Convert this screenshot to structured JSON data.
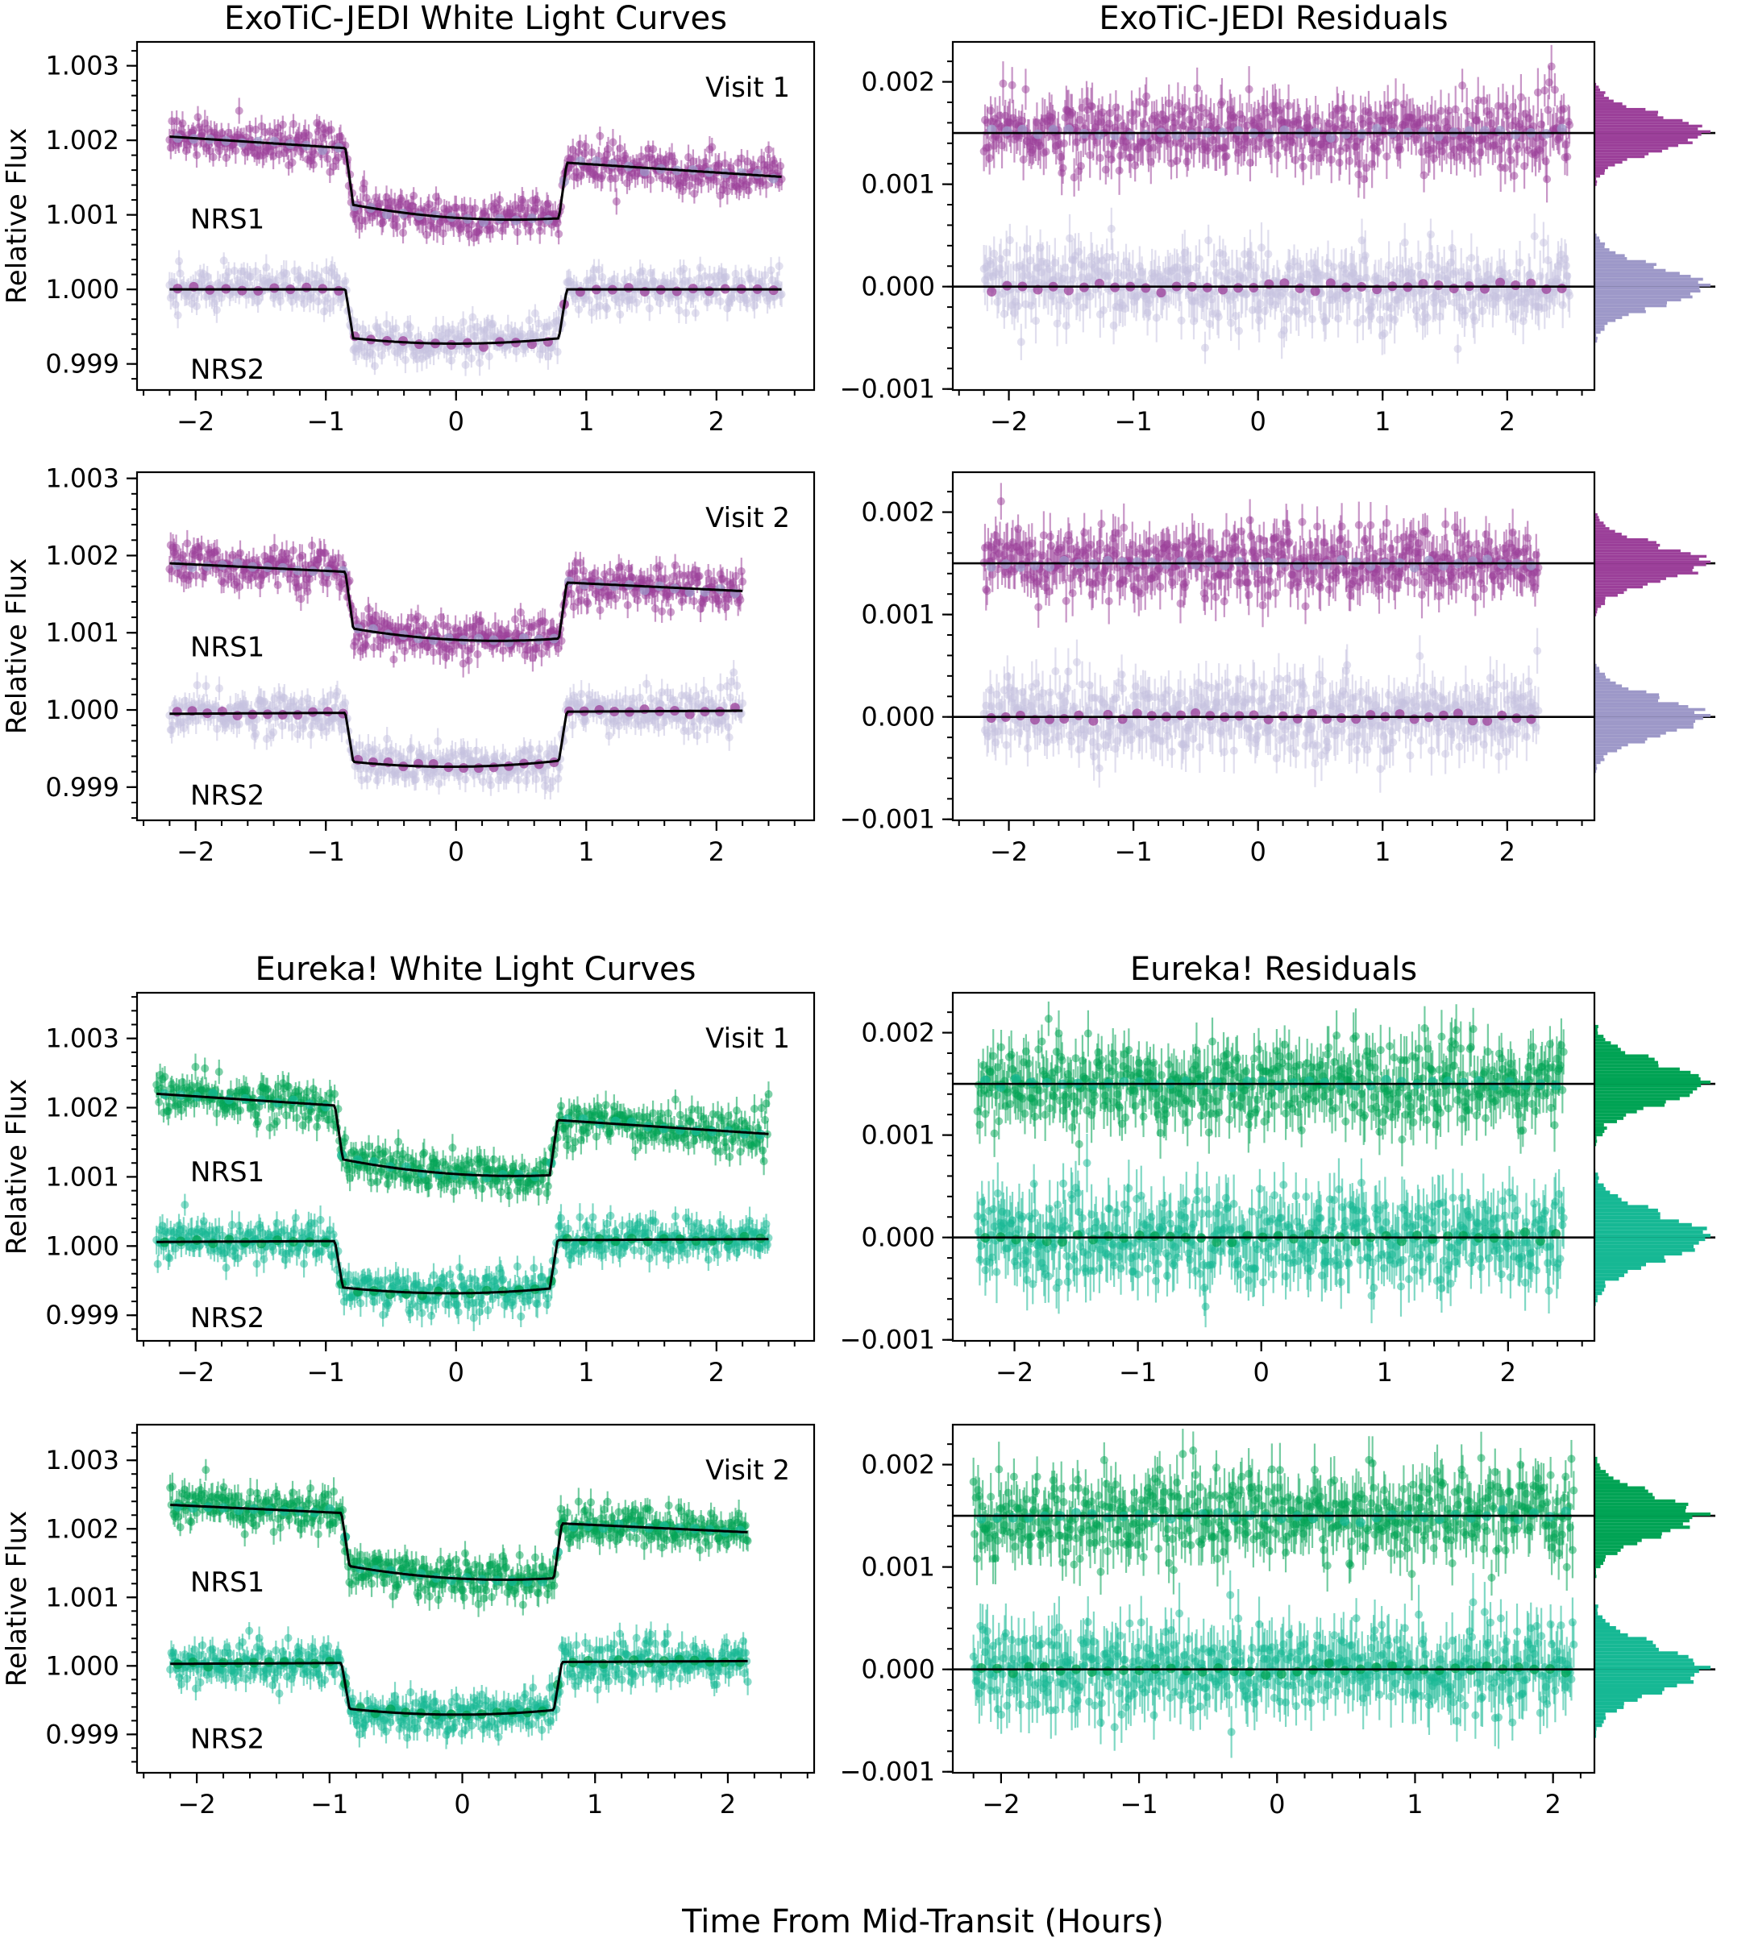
{
  "figure": {
    "xlabel": "Time From Mid-Transit (Hours)",
    "ylabel": "Relative Flux",
    "colors": {
      "jedi_nrs1": "#9b3f99",
      "jedi_nrs2": "#9d98c8",
      "jedi_nrs2_light": "#c6c2e0",
      "eureka_nrs1": "#00a354",
      "eureka_nrs2": "#16b894",
      "model": "#000000"
    }
  },
  "chart_data": [
    {
      "type": "scatter",
      "panel": "lc",
      "palette": "jedi",
      "visit_idx": 0,
      "title": "ExoTiC-JEDI White Light Curves",
      "annotation": "Visit 1",
      "ylabel": "Relative Flux",
      "xlim": [
        -2.45,
        2.75
      ],
      "ylim": [
        0.99865,
        1.00332
      ],
      "xticks": [
        -2,
        -1,
        0,
        1,
        2
      ],
      "xtick_labels": [
        "−2",
        "−1",
        "0",
        "1",
        "2"
      ],
      "yticks": [
        0.999,
        1.0,
        1.001,
        1.002,
        1.003
      ],
      "ytick_labels": [
        "0.999",
        "1.000",
        "1.001",
        "1.002",
        "1.003"
      ],
      "x_range": [
        -2.2,
        2.5
      ],
      "t1": -0.82,
      "t2": 0.82,
      "depth": 0.00065,
      "series": [
        {
          "name": "NRS1",
          "baseline": 1.00205,
          "slope": -0.00027,
          "scatter": 0.00013
        },
        {
          "name": "NRS2",
          "baseline": 1.0,
          "slope": 0.0,
          "scatter": 0.00013
        }
      ]
    },
    {
      "type": "scatter",
      "panel": "res",
      "palette": "jedi",
      "visit_idx": 0,
      "title": "ExoTiC-JEDI Residuals",
      "xlim": [
        -2.45,
        2.7
      ],
      "ylim": [
        -0.00101,
        0.00239
      ],
      "xticks": [
        -2,
        -1,
        0,
        1,
        2
      ],
      "xtick_labels": [
        "−2",
        "−1",
        "0",
        "1",
        "2"
      ],
      "yticks": [
        -0.001,
        0.0,
        0.001,
        0.002
      ],
      "ytick_labels": [
        "−0.001",
        "0.000",
        "0.001",
        "0.002"
      ],
      "x_range": [
        -2.2,
        2.5
      ],
      "offsets": [
        0.0015,
        0.0
      ],
      "series": [
        {
          "name": "NRS1",
          "scatter": 0.00017
        },
        {
          "name": "NRS2",
          "scatter": 0.00018
        }
      ]
    },
    {
      "type": "scatter",
      "panel": "lc",
      "palette": "jedi",
      "visit_idx": 1,
      "title": "",
      "annotation": "Visit 2",
      "ylabel": "Relative Flux",
      "xlim": [
        -2.45,
        2.75
      ],
      "ylim": [
        0.99857,
        1.00308
      ],
      "xticks": [
        -2,
        -1,
        0,
        1,
        2
      ],
      "xtick_labels": [
        "−2",
        "−1",
        "0",
        "1",
        "2"
      ],
      "yticks": [
        0.999,
        1.0,
        1.001,
        1.002,
        1.003
      ],
      "ytick_labels": [
        "0.999",
        "1.000",
        "1.001",
        "1.002",
        "1.003"
      ],
      "x_range": [
        -2.2,
        2.2
      ],
      "t1": -0.82,
      "t2": 0.82,
      "depth": 0.00063,
      "series": [
        {
          "name": "NRS1",
          "baseline": 1.0019,
          "slope": -0.00018,
          "scatter": 0.00013
        },
        {
          "name": "NRS2",
          "baseline": 0.99995,
          "slope": 2e-05,
          "scatter": 0.00013
        }
      ]
    },
    {
      "type": "scatter",
      "panel": "res",
      "palette": "jedi",
      "visit_idx": 1,
      "title": "",
      "xlim": [
        -2.45,
        2.7
      ],
      "ylim": [
        -0.00101,
        0.00239
      ],
      "xticks": [
        -2,
        -1,
        0,
        1,
        2
      ],
      "xtick_labels": [
        "−2",
        "−1",
        "0",
        "1",
        "2"
      ],
      "yticks": [
        -0.001,
        0.0,
        0.001,
        0.002
      ],
      "ytick_labels": [
        "−0.001",
        "0.000",
        "0.001",
        "0.002"
      ],
      "x_range": [
        -2.2,
        2.25
      ],
      "offsets": [
        0.0015,
        0.0
      ],
      "series": [
        {
          "name": "NRS1",
          "scatter": 0.00017
        },
        {
          "name": "NRS2",
          "scatter": 0.00018
        }
      ]
    },
    {
      "type": "scatter",
      "panel": "lc",
      "palette": "eureka",
      "visit_idx": 0,
      "title": "Eureka! White Light Curves",
      "annotation": "Visit 1",
      "ylabel": "Relative Flux",
      "xlim": [
        -2.45,
        2.75
      ],
      "ylim": [
        0.99863,
        1.00366
      ],
      "xticks": [
        -2,
        -1,
        0,
        1,
        2
      ],
      "xtick_labels": [
        "−2",
        "−1",
        "0",
        "1",
        "2"
      ],
      "yticks": [
        0.999,
        1.0,
        1.001,
        1.002,
        1.003
      ],
      "ytick_labels": [
        "0.999",
        "1.000",
        "1.001",
        "1.002",
        "1.003"
      ],
      "x_range": [
        -2.3,
        2.4
      ],
      "t1": -0.9,
      "t2": 0.75,
      "depth": 0.00068,
      "series": [
        {
          "name": "NRS1",
          "baseline": 1.0022,
          "slope": -0.00029,
          "scatter": 0.00015
        },
        {
          "name": "NRS2",
          "baseline": 1.00006,
          "slope": 2e-05,
          "scatter": 0.00015
        }
      ]
    },
    {
      "type": "scatter",
      "panel": "res",
      "palette": "eureka",
      "visit_idx": 0,
      "title": "Eureka! Residuals",
      "xlim": [
        -2.5,
        2.7
      ],
      "ylim": [
        -0.00101,
        0.00239
      ],
      "xticks": [
        -2,
        -1,
        0,
        1,
        2
      ],
      "xtick_labels": [
        "−2",
        "−1",
        "0",
        "1",
        "2"
      ],
      "yticks": [
        -0.001,
        0.0,
        0.001,
        0.002
      ],
      "ytick_labels": [
        "−0.001",
        "0.000",
        "0.001",
        "0.002"
      ],
      "x_range": [
        -2.3,
        2.45
      ],
      "offsets": [
        0.0015,
        0.0
      ],
      "series": [
        {
          "name": "NRS1",
          "scatter": 0.0002
        },
        {
          "name": "NRS2",
          "scatter": 0.00022
        }
      ]
    },
    {
      "type": "scatter",
      "panel": "lc",
      "palette": "eureka",
      "visit_idx": 1,
      "title": "",
      "annotation": "Visit 2",
      "ylabel": "Relative Flux",
      "xlim": [
        -2.45,
        2.65
      ],
      "ylim": [
        0.99844,
        1.00352
      ],
      "xticks": [
        -2,
        -1,
        0,
        1,
        2
      ],
      "xtick_labels": [
        "−2",
        "−1",
        "0",
        "1",
        "2"
      ],
      "yticks": [
        0.999,
        1.0,
        1.001,
        1.002,
        1.003
      ],
      "ytick_labels": [
        "0.999",
        "1.000",
        "1.001",
        "1.002",
        "1.003"
      ],
      "x_range": [
        -2.2,
        2.15
      ],
      "t1": -0.88,
      "t2": 0.72,
      "depth": 0.00068,
      "series": [
        {
          "name": "NRS1",
          "baseline": 1.00235,
          "slope": -0.0002,
          "scatter": 0.00015
        },
        {
          "name": "NRS2",
          "baseline": 1.00003,
          "slope": 2e-05,
          "scatter": 0.00015
        }
      ]
    },
    {
      "type": "scatter",
      "panel": "res",
      "palette": "eureka",
      "visit_idx": 1,
      "title": "",
      "xlim": [
        -2.35,
        2.3
      ],
      "ylim": [
        -0.00101,
        0.00239
      ],
      "xticks": [
        -2,
        -1,
        0,
        1,
        2
      ],
      "xtick_labels": [
        "−2",
        "−1",
        "0",
        "1",
        "2"
      ],
      "yticks": [
        -0.001,
        0.0,
        0.001,
        0.002
      ],
      "ytick_labels": [
        "−0.001",
        "0.000",
        "0.001",
        "0.002"
      ],
      "x_range": [
        -2.2,
        2.15
      ],
      "offsets": [
        0.0015,
        0.0
      ],
      "series": [
        {
          "name": "NRS1",
          "scatter": 0.0002
        },
        {
          "name": "NRS2",
          "scatter": 0.00022
        }
      ]
    }
  ]
}
